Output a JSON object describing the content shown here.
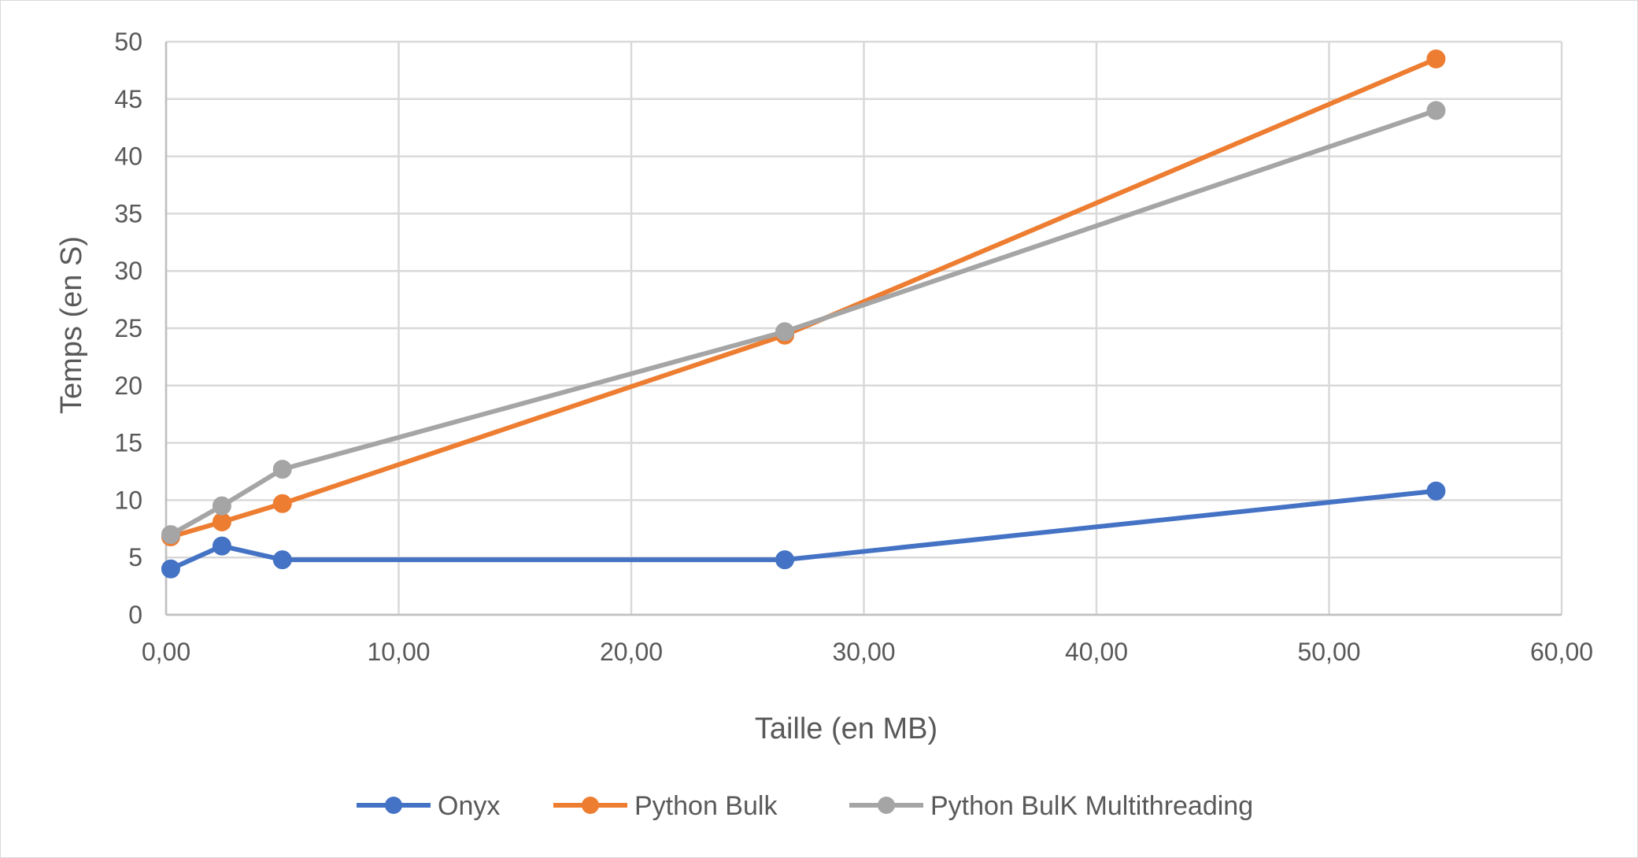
{
  "chart_data": {
    "type": "line",
    "title": "",
    "xlabel": "Taille (en MB)",
    "ylabel": "Temps (en S)",
    "xlim": [
      0,
      60
    ],
    "ylim": [
      0,
      50
    ],
    "x_ticks": [
      "0,00",
      "10,00",
      "20,00",
      "30,00",
      "40,00",
      "50,00",
      "60,00"
    ],
    "y_ticks": [
      "0",
      "5",
      "10",
      "15",
      "20",
      "25",
      "30",
      "35",
      "40",
      "45",
      "50"
    ],
    "grid": true,
    "legend_position": "bottom",
    "series": [
      {
        "name": "Onyx",
        "color": "#4472C4",
        "points": [
          [
            0.2,
            4.0
          ],
          [
            2.4,
            6.0
          ],
          [
            5.0,
            4.8
          ],
          [
            26.6,
            4.8
          ],
          [
            54.6,
            10.8
          ]
        ]
      },
      {
        "name": "Python Bulk",
        "color": "#ED7D31",
        "points": [
          [
            0.2,
            6.8
          ],
          [
            2.4,
            8.1
          ],
          [
            5.0,
            9.7
          ],
          [
            26.6,
            24.4
          ],
          [
            54.6,
            48.5
          ]
        ]
      },
      {
        "name": "Python BulK Multithreading",
        "color": "#A5A5A5",
        "points": [
          [
            0.2,
            7.0
          ],
          [
            2.4,
            9.5
          ],
          [
            5.0,
            12.7
          ],
          [
            26.6,
            24.7
          ],
          [
            54.6,
            44.0
          ]
        ]
      }
    ]
  }
}
